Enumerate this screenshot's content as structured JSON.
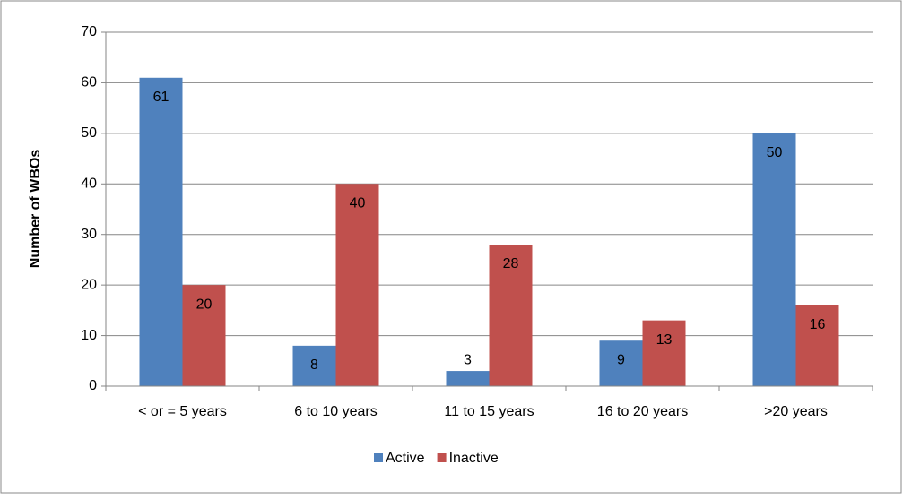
{
  "chart_data": {
    "type": "bar",
    "categories": [
      "< or = 5 years",
      "6 to 10 years",
      "11 to 15 years",
      "16 to 20 years",
      ">20 years"
    ],
    "series": [
      {
        "name": "Active",
        "color": "#4f81bd",
        "values": [
          61,
          8,
          3,
          9,
          50
        ]
      },
      {
        "name": "Inactive",
        "color": "#c0504d",
        "values": [
          20,
          40,
          28,
          13,
          16
        ]
      }
    ],
    "y_label": "Number of WBOs",
    "ylim": [
      0,
      70
    ],
    "yticks": [
      0,
      10,
      20,
      30,
      40,
      50,
      60,
      70
    ],
    "grid": true,
    "legend": "bottom"
  }
}
